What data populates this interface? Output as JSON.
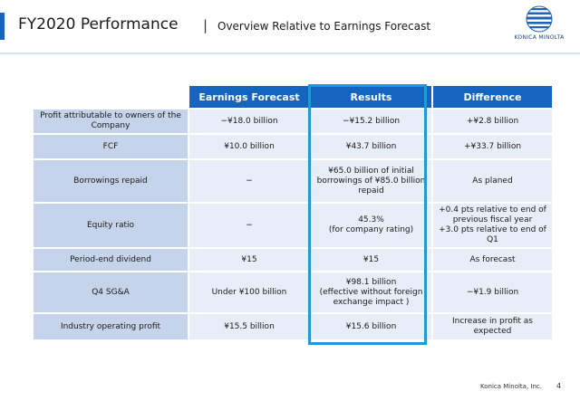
{
  "header": {
    "title": "FY2020 Performance",
    "separator": "|",
    "subtitle": "Overview Relative to Earnings Forecast",
    "logo_text": "KONICA MINOLTA"
  },
  "table": {
    "columns": [
      "",
      "Earnings Forecast",
      "Results",
      "Difference"
    ],
    "rows": [
      {
        "label": "Profit attributable to owners of the Company",
        "forecast": "−¥18.0 billion",
        "results": "−¥15.2 billion",
        "difference": "+¥2.8 billion"
      },
      {
        "label": "FCF",
        "forecast": "¥10.0 billion",
        "results": "¥43.7 billion",
        "difference": "+¥33.7 billion"
      },
      {
        "label": "Borrowings repaid",
        "forecast": "−",
        "results": "¥65.0 billion of initial borrowings of ¥85.0 billion repaid",
        "difference": "As planed"
      },
      {
        "label": "Equity ratio",
        "forecast": "−",
        "results": "45.3%\n(for company rating)",
        "difference": "+0.4 pts relative to end of previous fiscal year\n+3.0 pts relative to end of Q1"
      },
      {
        "label": "Period-end dividend",
        "forecast": "¥15",
        "results": "¥15",
        "difference": "As forecast"
      },
      {
        "label": "Q4 SG&A",
        "forecast": "Under ¥100 billion",
        "results": "¥98.1 billion\n(effective without foreign exchange impact )",
        "difference": "−¥1.9 billion"
      },
      {
        "label": "Industry operating profit",
        "forecast": "¥15.5 billion",
        "results": "¥15.6 billion",
        "difference": "Increase in profit as expected"
      }
    ]
  },
  "footer": {
    "company": "Konica Minolta, Inc.",
    "page": "4"
  },
  "colors": {
    "header_blue": "#1565c0",
    "highlight_frame": "#1e9bd7",
    "label_fill": "#c5d4ea",
    "cell_fill": "#e8eef7"
  }
}
